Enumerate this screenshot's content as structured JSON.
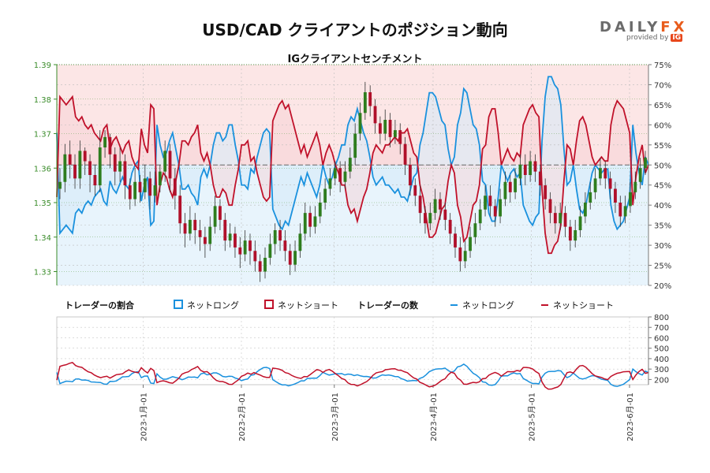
{
  "title": "USD/CAD クライアントのポジション動向",
  "brand": {
    "name_main": "DAILY",
    "name_accent": "FX",
    "provided_by": "provided by",
    "ig_logo": "IG"
  },
  "chart_data": {
    "type": "line",
    "subtitle": "IGクライアントセンチメント",
    "colors": {
      "long": "#1a91de",
      "short": "#c0112a",
      "long_fill": "#e8f4fc",
      "short_fill": "#fce6e6",
      "candle_up": "#2e7d1e",
      "candle_down": "#b0102a",
      "axis_green": "#3a8c2a"
    },
    "price_axis": {
      "range": [
        1.326,
        1.39
      ],
      "ticks": [
        "1.39",
        "1.38",
        "1.37",
        "1.36",
        "1.35",
        "1.34",
        "1.33"
      ]
    },
    "ratio_axis": {
      "range": [
        0.2,
        0.75
      ],
      "ticks": [
        "75%",
        "70%",
        "65%",
        "60%",
        "55%",
        "50%",
        "45%",
        "40%",
        "35%",
        "30%",
        "25%",
        "20%"
      ]
    },
    "count_axis": {
      "range": [
        150,
        800
      ],
      "ticks": [
        "800",
        "700",
        "600",
        "500",
        "400",
        "300",
        "200"
      ]
    },
    "x_axis": {
      "dates": [
        "2023-1月-01",
        "2023-2月-01",
        "2023-3月-01",
        "2023-4月-01",
        "2023-5月-01",
        "2023-6月-01"
      ],
      "positions": [
        0.146,
        0.312,
        0.469,
        0.636,
        0.802,
        0.968
      ]
    },
    "legend": {
      "ratio_title": "トレーダーの割合",
      "count_title": "トレーダーの数",
      "net_long": "ネットロング",
      "net_short": "ネットショート"
    },
    "long_ratio": [
      0.58,
      0.33,
      0.34,
      0.35,
      0.34,
      0.33,
      0.38,
      0.39,
      0.38,
      0.4,
      0.41,
      0.4,
      0.42,
      0.43,
      0.44,
      0.41,
      0.4,
      0.46,
      0.44,
      0.43,
      0.45,
      0.47,
      0.45,
      0.44,
      0.48,
      0.5,
      0.51,
      0.41,
      0.45,
      0.47,
      0.35,
      0.36,
      0.6,
      0.55,
      0.52,
      0.53,
      0.56,
      0.58,
      0.54,
      0.5,
      0.44,
      0.44,
      0.45,
      0.43,
      0.42,
      0.4,
      0.47,
      0.49,
      0.47,
      0.5,
      0.55,
      0.58,
      0.58,
      0.56,
      0.57,
      0.6,
      0.6,
      0.55,
      0.51,
      0.45,
      0.45,
      0.44,
      0.49,
      0.48,
      0.52,
      0.55,
      0.58,
      0.59,
      0.58,
      0.39,
      0.37,
      0.35,
      0.34,
      0.36,
      0.35,
      0.38,
      0.41,
      0.44,
      0.47,
      0.45,
      0.48,
      0.46,
      0.44,
      0.42,
      0.45,
      0.5,
      0.47,
      0.45,
      0.47,
      0.5,
      0.52,
      0.55,
      0.55,
      0.6,
      0.62,
      0.61,
      0.64,
      0.61,
      0.58,
      0.56,
      0.52,
      0.47,
      0.45,
      0.46,
      0.47,
      0.45,
      0.45,
      0.44,
      0.43,
      0.44,
      0.42,
      0.42,
      0.41,
      0.44,
      0.47,
      0.48,
      0.55,
      0.58,
      0.63,
      0.68,
      0.68,
      0.67,
      0.64,
      0.61,
      0.6,
      0.54,
      0.5,
      0.52,
      0.6,
      0.63,
      0.69,
      0.68,
      0.64,
      0.6,
      0.59,
      0.55,
      0.46,
      0.45,
      0.38,
      0.36,
      0.36,
      0.42,
      0.5,
      0.48,
      0.46,
      0.48,
      0.49,
      0.47,
      0.48,
      0.4,
      0.38,
      0.36,
      0.35,
      0.37,
      0.38,
      0.56,
      0.67,
      0.72,
      0.72,
      0.7,
      0.69,
      0.65,
      0.54,
      0.45,
      0.46,
      0.5,
      0.44,
      0.39,
      0.38,
      0.4,
      0.44,
      0.48,
      0.5,
      0.49,
      0.48,
      0.49,
      0.49,
      0.4,
      0.36,
      0.34,
      0.35,
      0.36,
      0.39,
      0.42,
      0.6,
      0.53,
      0.48,
      0.45,
      0.52,
      0.5
    ],
    "candles": [
      [
        1.354,
        1.356,
        1.36,
        1.351
      ],
      [
        1.356,
        1.364,
        1.367,
        1.353
      ],
      [
        1.364,
        1.361,
        1.368,
        1.357
      ],
      [
        1.361,
        1.357,
        1.364,
        1.354
      ],
      [
        1.357,
        1.365,
        1.368,
        1.354
      ],
      [
        1.365,
        1.362,
        1.366,
        1.358
      ],
      [
        1.362,
        1.358,
        1.364,
        1.353
      ],
      [
        1.358,
        1.355,
        1.361,
        1.352
      ],
      [
        1.355,
        1.366,
        1.371,
        1.353
      ],
      [
        1.366,
        1.369,
        1.371,
        1.363
      ],
      [
        1.369,
        1.364,
        1.37,
        1.36
      ],
      [
        1.364,
        1.359,
        1.366,
        1.355
      ],
      [
        1.359,
        1.362,
        1.366,
        1.356
      ],
      [
        1.362,
        1.355,
        1.364,
        1.351
      ],
      [
        1.355,
        1.351,
        1.357,
        1.348
      ],
      [
        1.351,
        1.356,
        1.36,
        1.349
      ],
      [
        1.356,
        1.353,
        1.358,
        1.35
      ],
      [
        1.353,
        1.357,
        1.361,
        1.351
      ],
      [
        1.357,
        1.352,
        1.359,
        1.348
      ],
      [
        1.352,
        1.355,
        1.359,
        1.35
      ],
      [
        1.355,
        1.359,
        1.361,
        1.353
      ],
      [
        1.359,
        1.365,
        1.368,
        1.356
      ],
      [
        1.365,
        1.357,
        1.367,
        1.353
      ],
      [
        1.357,
        1.352,
        1.36,
        1.348
      ],
      [
        1.352,
        1.344,
        1.355,
        1.341
      ],
      [
        1.344,
        1.341,
        1.347,
        1.337
      ],
      [
        1.341,
        1.345,
        1.349,
        1.339
      ],
      [
        1.345,
        1.342,
        1.347,
        1.338
      ],
      [
        1.342,
        1.34,
        1.345,
        1.336
      ],
      [
        1.34,
        1.338,
        1.343,
        1.334
      ],
      [
        1.338,
        1.343,
        1.346,
        1.336
      ],
      [
        1.343,
        1.349,
        1.352,
        1.341
      ],
      [
        1.349,
        1.345,
        1.351,
        1.342
      ],
      [
        1.345,
        1.339,
        1.347,
        1.336
      ],
      [
        1.339,
        1.341,
        1.344,
        1.337
      ],
      [
        1.341,
        1.337,
        1.343,
        1.334
      ],
      [
        1.337,
        1.335,
        1.34,
        1.331
      ],
      [
        1.335,
        1.339,
        1.342,
        1.333
      ],
      [
        1.339,
        1.336,
        1.341,
        1.332
      ],
      [
        1.336,
        1.333,
        1.339,
        1.33
      ],
      [
        1.333,
        1.33,
        1.335,
        1.327
      ],
      [
        1.33,
        1.334,
        1.337,
        1.328
      ],
      [
        1.334,
        1.338,
        1.341,
        1.332
      ],
      [
        1.338,
        1.342,
        1.344,
        1.335
      ],
      [
        1.342,
        1.339,
        1.345,
        1.336
      ],
      [
        1.339,
        1.336,
        1.342,
        1.333
      ],
      [
        1.336,
        1.332,
        1.338,
        1.329
      ],
      [
        1.332,
        1.336,
        1.339,
        1.33
      ],
      [
        1.336,
        1.341,
        1.344,
        1.334
      ],
      [
        1.341,
        1.347,
        1.35,
        1.339
      ],
      [
        1.347,
        1.343,
        1.349,
        1.34
      ],
      [
        1.343,
        1.346,
        1.349,
        1.341
      ],
      [
        1.346,
        1.35,
        1.353,
        1.344
      ],
      [
        1.35,
        1.354,
        1.357,
        1.348
      ],
      [
        1.354,
        1.357,
        1.36,
        1.352
      ],
      [
        1.357,
        1.36,
        1.362,
        1.355
      ],
      [
        1.36,
        1.356,
        1.362,
        1.353
      ],
      [
        1.356,
        1.359,
        1.362,
        1.354
      ],
      [
        1.359,
        1.363,
        1.366,
        1.357
      ],
      [
        1.363,
        1.37,
        1.373,
        1.361
      ],
      [
        1.37,
        1.376,
        1.379,
        1.368
      ],
      [
        1.376,
        1.382,
        1.385,
        1.374
      ],
      [
        1.382,
        1.378,
        1.384,
        1.375
      ],
      [
        1.378,
        1.373,
        1.38,
        1.37
      ],
      [
        1.373,
        1.37,
        1.375,
        1.367
      ],
      [
        1.37,
        1.374,
        1.377,
        1.368
      ],
      [
        1.374,
        1.369,
        1.376,
        1.366
      ],
      [
        1.369,
        1.371,
        1.374,
        1.367
      ],
      [
        1.371,
        1.367,
        1.373,
        1.364
      ],
      [
        1.367,
        1.361,
        1.369,
        1.358
      ],
      [
        1.361,
        1.355,
        1.363,
        1.352
      ],
      [
        1.355,
        1.352,
        1.357,
        1.349
      ],
      [
        1.352,
        1.347,
        1.355,
        1.344
      ],
      [
        1.347,
        1.344,
        1.349,
        1.341
      ],
      [
        1.344,
        1.347,
        1.35,
        1.342
      ],
      [
        1.347,
        1.351,
        1.354,
        1.345
      ],
      [
        1.351,
        1.348,
        1.353,
        1.345
      ],
      [
        1.348,
        1.345,
        1.35,
        1.342
      ],
      [
        1.345,
        1.341,
        1.347,
        1.338
      ],
      [
        1.341,
        1.337,
        1.343,
        1.334
      ],
      [
        1.337,
        1.333,
        1.34,
        1.33
      ],
      [
        1.333,
        1.336,
        1.339,
        1.331
      ],
      [
        1.336,
        1.34,
        1.343,
        1.334
      ],
      [
        1.34,
        1.344,
        1.347,
        1.338
      ],
      [
        1.344,
        1.348,
        1.351,
        1.342
      ],
      [
        1.348,
        1.352,
        1.355,
        1.346
      ],
      [
        1.352,
        1.349,
        1.355,
        1.346
      ],
      [
        1.349,
        1.346,
        1.351,
        1.343
      ],
      [
        1.346,
        1.351,
        1.354,
        1.344
      ],
      [
        1.351,
        1.356,
        1.359,
        1.349
      ],
      [
        1.356,
        1.353,
        1.358,
        1.35
      ],
      [
        1.353,
        1.357,
        1.36,
        1.351
      ],
      [
        1.357,
        1.361,
        1.364,
        1.355
      ],
      [
        1.361,
        1.358,
        1.364,
        1.355
      ],
      [
        1.358,
        1.362,
        1.365,
        1.356
      ],
      [
        1.362,
        1.359,
        1.364,
        1.356
      ],
      [
        1.359,
        1.355,
        1.361,
        1.352
      ],
      [
        1.355,
        1.351,
        1.357,
        1.348
      ],
      [
        1.351,
        1.347,
        1.353,
        1.344
      ],
      [
        1.347,
        1.344,
        1.349,
        1.341
      ],
      [
        1.344,
        1.347,
        1.35,
        1.342
      ],
      [
        1.347,
        1.343,
        1.349,
        1.34
      ],
      [
        1.343,
        1.339,
        1.345,
        1.336
      ],
      [
        1.339,
        1.342,
        1.345,
        1.337
      ],
      [
        1.342,
        1.346,
        1.349,
        1.34
      ],
      [
        1.346,
        1.35,
        1.353,
        1.344
      ],
      [
        1.35,
        1.353,
        1.356,
        1.348
      ],
      [
        1.353,
        1.357,
        1.36,
        1.351
      ],
      [
        1.357,
        1.36,
        1.363,
        1.355
      ],
      [
        1.36,
        1.357,
        1.362,
        1.354
      ],
      [
        1.357,
        1.354,
        1.359,
        1.351
      ],
      [
        1.354,
        1.35,
        1.356,
        1.347
      ],
      [
        1.35,
        1.346,
        1.352,
        1.343
      ],
      [
        1.346,
        1.349,
        1.352,
        1.344
      ],
      [
        1.349,
        1.353,
        1.356,
        1.347
      ],
      [
        1.353,
        1.356,
        1.359,
        1.351
      ],
      [
        1.356,
        1.36,
        1.363,
        1.354
      ],
      [
        1.36,
        1.363,
        1.365,
        1.358
      ]
    ]
  }
}
